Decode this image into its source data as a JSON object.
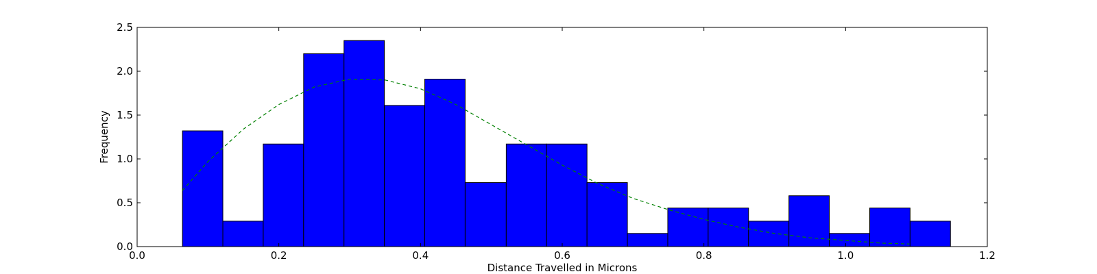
{
  "chart_data": {
    "type": "bar",
    "subtype": "histogram",
    "title": "",
    "xlabel": "Distance Travelled in Microns",
    "ylabel": "Frequency",
    "xlim": [
      0.0,
      1.2
    ],
    "ylim": [
      0.0,
      2.5
    ],
    "xticks": [
      "0.0",
      "0.2",
      "0.4",
      "0.6",
      "0.8",
      "1.0",
      "1.2"
    ],
    "yticks": [
      "0.0",
      "0.5",
      "1.0",
      "1.5",
      "2.0",
      "2.5"
    ],
    "grid": false,
    "legend": "none",
    "bar_color": "#0000ff",
    "bar_edge_color": "#000000",
    "bins": [
      {
        "x0": 0.064,
        "x1": 0.121,
        "value": 1.32
      },
      {
        "x0": 0.121,
        "x1": 0.178,
        "value": 0.29
      },
      {
        "x0": 0.178,
        "x1": 0.235,
        "value": 1.17
      },
      {
        "x0": 0.235,
        "x1": 0.292,
        "value": 2.2
      },
      {
        "x0": 0.292,
        "x1": 0.349,
        "value": 2.35
      },
      {
        "x0": 0.349,
        "x1": 0.406,
        "value": 1.61
      },
      {
        "x0": 0.406,
        "x1": 0.463,
        "value": 1.91
      },
      {
        "x0": 0.463,
        "x1": 0.521,
        "value": 0.73
      },
      {
        "x0": 0.521,
        "x1": 0.578,
        "value": 1.17
      },
      {
        "x0": 0.578,
        "x1": 0.635,
        "value": 1.17
      },
      {
        "x0": 0.635,
        "x1": 0.692,
        "value": 0.73
      },
      {
        "x0": 0.692,
        "x1": 0.749,
        "value": 0.15
      },
      {
        "x0": 0.749,
        "x1": 0.806,
        "value": 0.44
      },
      {
        "x0": 0.806,
        "x1": 0.863,
        "value": 0.44
      },
      {
        "x0": 0.863,
        "x1": 0.92,
        "value": 0.29
      },
      {
        "x0": 0.92,
        "x1": 0.977,
        "value": 0.58
      },
      {
        "x0": 0.977,
        "x1": 1.034,
        "value": 0.15
      },
      {
        "x0": 1.034,
        "x1": 1.091,
        "value": 0.44
      },
      {
        "x0": 1.091,
        "x1": 1.148,
        "value": 0.29
      }
    ],
    "fit_curve": {
      "style": "dashed",
      "color": "#008000",
      "x": [
        0.064,
        0.1,
        0.15,
        0.2,
        0.25,
        0.3,
        0.35,
        0.4,
        0.45,
        0.5,
        0.55,
        0.6,
        0.65,
        0.7,
        0.75,
        0.8,
        0.85,
        0.9,
        0.95,
        1.0,
        1.05,
        1.09
      ],
      "y": [
        0.64,
        0.97,
        1.34,
        1.62,
        1.82,
        1.91,
        1.9,
        1.8,
        1.62,
        1.39,
        1.16,
        0.93,
        0.72,
        0.55,
        0.42,
        0.31,
        0.22,
        0.15,
        0.1,
        0.07,
        0.04,
        0.03
      ]
    }
  }
}
